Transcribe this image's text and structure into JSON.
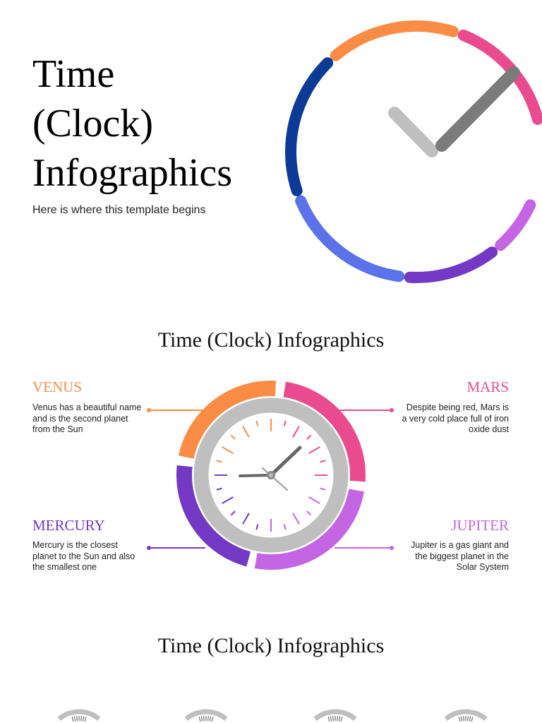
{
  "hero": {
    "title": "Time (Clock) Infographics",
    "subtitle": "Here is where this template begins"
  },
  "section1": {
    "title": "Time (Clock) Infographics",
    "items": [
      {
        "name": "VENUS",
        "text": "Venus has a beautiful name and is the second planet from the Sun",
        "color": "#fb8c46"
      },
      {
        "name": "MARS",
        "text": "Despite being red, Mars is a very cold place full of iron oxide dust",
        "color": "#ea4b8f"
      },
      {
        "name": "MERCURY",
        "text": "Mercury is the closest planet to the Sun and also the smallest one",
        "color": "#7338c4"
      },
      {
        "name": "JUPITER",
        "text": "Jupiter is a gas giant and the biggest planet in the Solar System",
        "color": "#c466e4"
      }
    ]
  },
  "section2": {
    "title": "Time (Clock) Infographics"
  },
  "colors": {
    "orange": "#fb8c46",
    "pink": "#ea4b8f",
    "lilac": "#c466e4",
    "purple": "#7338c4",
    "blue": "#5b72ea",
    "navy": "#0c3a97",
    "gray": "#bfbfbf",
    "dark_gray": "#7b7b7b"
  }
}
